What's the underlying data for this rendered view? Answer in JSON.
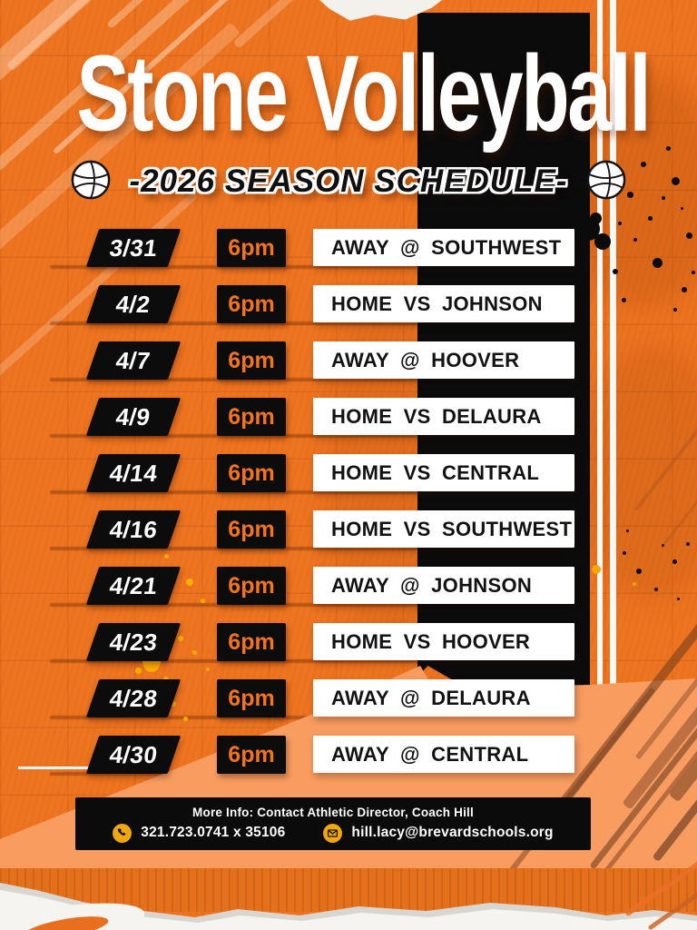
{
  "header": {
    "title": "Stone Volleyball",
    "subtitle": "-2026 SEASON SCHEDULE-"
  },
  "schedule": [
    {
      "date": "3/31",
      "time": "6pm",
      "game": "AWAY @ SOUTHWEST"
    },
    {
      "date": "4/2",
      "time": "6pm",
      "game": "HOME VS JOHNSON"
    },
    {
      "date": "4/7",
      "time": "6pm",
      "game": "AWAY @ HOOVER"
    },
    {
      "date": "4/9",
      "time": "6pm",
      "game": "HOME VS DELAURA"
    },
    {
      "date": "4/14",
      "time": "6pm",
      "game": "HOME VS CENTRAL"
    },
    {
      "date": "4/16",
      "time": "6pm",
      "game": "HOME VS SOUTHWEST"
    },
    {
      "date": "4/21",
      "time": "6pm",
      "game": "AWAY @ JOHNSON"
    },
    {
      "date": "4/23",
      "time": "6pm",
      "game": "HOME VS HOOVER"
    },
    {
      "date": "4/28",
      "time": "6pm",
      "game": "AWAY @ DELAURA"
    },
    {
      "date": "4/30",
      "time": "6pm",
      "game": "AWAY @ CENTRAL"
    }
  ],
  "footer": {
    "info": "More Info: Contact Athletic Director, Coach Hill",
    "phone": "321.723.0741 x 35106",
    "email": "hill.lacy@brevardschools.org"
  },
  "colors": {
    "background_orange": "#EE7420",
    "light_orange_wedge": "#F89C60",
    "accent_orange_text": "#F4731F",
    "black": "#0B0B0B",
    "white": "#FFFFFF",
    "icon_yellow": "#F1A60C"
  }
}
